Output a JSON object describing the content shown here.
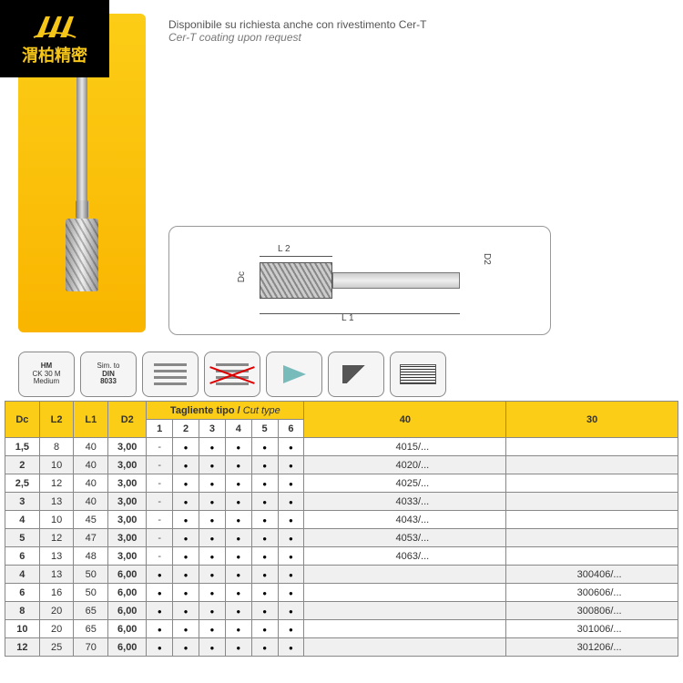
{
  "logo": {
    "text": "渭柏精密",
    "fill": "#f5c518"
  },
  "description": {
    "line1": "Disponibile su richiesta anche con rivestimento Cer-T",
    "line2": "Cer-T coating upon request"
  },
  "diagram": {
    "l2": "L 2",
    "l1": "L 1",
    "dc": "Dc",
    "d2": "D2"
  },
  "icons": {
    "hm": {
      "l1": "HM",
      "l2": "CK 30 M",
      "l3": "Medium"
    },
    "din": {
      "l1": "Sim. to",
      "l2": "DIN",
      "l3": "8033"
    }
  },
  "table": {
    "headers": {
      "dc": "Dc",
      "l2": "L2",
      "l1": "L1",
      "d2": "D2",
      "cut_label_it": "Tagliente tipo /",
      "cut_label_en": "Cut type",
      "ct": [
        "1",
        "2",
        "3",
        "4",
        "5",
        "6"
      ],
      "c40": "40",
      "c30": "30"
    },
    "rows": [
      {
        "dc": "1,5",
        "l2": "8",
        "l1": "40",
        "d2": "3,00",
        "ct": [
          "-",
          "•",
          "•",
          "•",
          "•",
          "•"
        ],
        "c40": "4015/...",
        "c30": ""
      },
      {
        "dc": "2",
        "l2": "10",
        "l1": "40",
        "d2": "3,00",
        "ct": [
          "-",
          "•",
          "•",
          "•",
          "•",
          "•"
        ],
        "c40": "4020/...",
        "c30": ""
      },
      {
        "dc": "2,5",
        "l2": "12",
        "l1": "40",
        "d2": "3,00",
        "ct": [
          "-",
          "•",
          "•",
          "•",
          "•",
          "•"
        ],
        "c40": "4025/...",
        "c30": ""
      },
      {
        "dc": "3",
        "l2": "13",
        "l1": "40",
        "d2": "3,00",
        "ct": [
          "-",
          "•",
          "•",
          "•",
          "•",
          "•"
        ],
        "c40": "4033/...",
        "c30": ""
      },
      {
        "dc": "4",
        "l2": "10",
        "l1": "45",
        "d2": "3,00",
        "ct": [
          "-",
          "•",
          "•",
          "•",
          "•",
          "•"
        ],
        "c40": "4043/...",
        "c30": ""
      },
      {
        "dc": "5",
        "l2": "12",
        "l1": "47",
        "d2": "3,00",
        "ct": [
          "-",
          "•",
          "•",
          "•",
          "•",
          "•"
        ],
        "c40": "4053/...",
        "c30": ""
      },
      {
        "dc": "6",
        "l2": "13",
        "l1": "48",
        "d2": "3,00",
        "ct": [
          "-",
          "•",
          "•",
          "•",
          "•",
          "•"
        ],
        "c40": "4063/...",
        "c30": ""
      },
      {
        "dc": "4",
        "l2": "13",
        "l1": "50",
        "d2": "6,00",
        "ct": [
          "•",
          "•",
          "•",
          "•",
          "•",
          "•"
        ],
        "c40": "",
        "c30": "300406/..."
      },
      {
        "dc": "6",
        "l2": "16",
        "l1": "50",
        "d2": "6,00",
        "ct": [
          "•",
          "•",
          "•",
          "•",
          "•",
          "•"
        ],
        "c40": "",
        "c30": "300606/..."
      },
      {
        "dc": "8",
        "l2": "20",
        "l1": "65",
        "d2": "6,00",
        "ct": [
          "•",
          "•",
          "•",
          "•",
          "•",
          "•"
        ],
        "c40": "",
        "c30": "300806/..."
      },
      {
        "dc": "10",
        "l2": "20",
        "l1": "65",
        "d2": "6,00",
        "ct": [
          "•",
          "•",
          "•",
          "•",
          "•",
          "•"
        ],
        "c40": "",
        "c30": "301006/..."
      },
      {
        "dc": "12",
        "l2": "25",
        "l1": "70",
        "d2": "6,00",
        "ct": [
          "•",
          "•",
          "•",
          "•",
          "•",
          "•"
        ],
        "c40": "",
        "c30": "301206/..."
      }
    ]
  },
  "colors": {
    "brand_yellow": "#fccd16",
    "brand_orange": "#f9b500",
    "border": "#888888"
  }
}
